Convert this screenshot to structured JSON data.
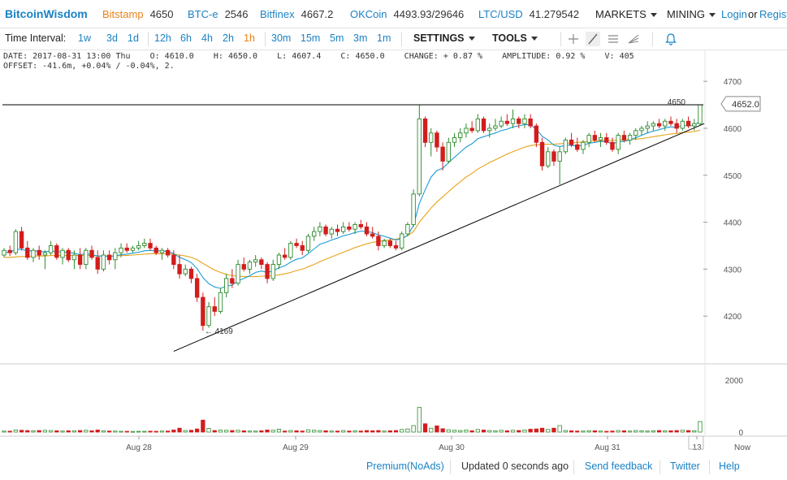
{
  "header": {
    "logo": "BitcoinWisdom",
    "tickers": [
      {
        "name": "Bitstamp",
        "price": "4650",
        "color": "#e8821a"
      },
      {
        "name": "BTC-e",
        "price": "2546",
        "color": "#1a82c5"
      },
      {
        "name": "Bitfinex",
        "price": "4667.2",
        "color": "#1a82c5"
      },
      {
        "name": "OKCoin",
        "price": "4493.93/29646",
        "color": "#1a82c5"
      },
      {
        "name": "LTC/USD",
        "price": "41.279542",
        "color": "#1a82c5"
      }
    ],
    "markets": "MARKETS",
    "mining": "MINING",
    "login": "Login",
    "or": "or",
    "register": "Regist"
  },
  "toolbar": {
    "label": "Time Interval:",
    "intervals": [
      "1w",
      "3d",
      "1d",
      "12h",
      "6h",
      "4h",
      "2h",
      "1h",
      "30m",
      "15m",
      "5m",
      "3m",
      "1m"
    ],
    "active_interval": "1h",
    "settings": "SETTINGS",
    "tools": "TOOLS",
    "tool_icons": [
      "crosshair-icon",
      "line-draw-icon",
      "fib-lines-icon",
      "fan-icon",
      "alarm-bell-icon"
    ]
  },
  "info": {
    "line1": "DATE: 2017-08-31 13:00 Thu    O: 4610.0    H: 4650.0    L: 4607.4    C: 4650.0    CHANGE: + 0.87 %    AMPLITUDE: 0.92 %    V: 405",
    "line2": "OFFSET: -41.6m, +0.04% / -0.04%, 2."
  },
  "chart_data": {
    "type": "candlestick",
    "colors": {
      "up": "#2e8b2e",
      "down": "#d31c1c",
      "ema_fast": "#1a9bd7",
      "ema_slow": "#e8a317",
      "line": "#000000"
    },
    "price_axis": {
      "ticks": [
        4200,
        4300,
        4400,
        4500,
        4600,
        4700
      ],
      "range": [
        4100,
        4740
      ]
    },
    "volume_axis": {
      "ticks": [
        0,
        2000
      ],
      "range": [
        0,
        2500
      ]
    },
    "time_labels": [
      "Aug 28",
      "Aug 29",
      "Aug 30",
      "Aug 31",
      "13",
      "Now"
    ],
    "current_price_tag": "4652.0",
    "high_label": "4650",
    "low_label": "← 4169",
    "horizontal_line": 4650,
    "candles": [
      [
        4330,
        4345,
        4325,
        4340,
        40
      ],
      [
        4340,
        4350,
        4328,
        4335,
        35
      ],
      [
        4335,
        4385,
        4330,
        4380,
        80
      ],
      [
        4380,
        4390,
        4340,
        4345,
        70
      ],
      [
        4345,
        4360,
        4320,
        4325,
        60
      ],
      [
        4325,
        4345,
        4315,
        4340,
        50
      ],
      [
        4340,
        4350,
        4320,
        4330,
        60
      ],
      [
        4330,
        4340,
        4300,
        4335,
        70
      ],
      [
        4335,
        4360,
        4330,
        4350,
        60
      ],
      [
        4350,
        4355,
        4320,
        4325,
        50
      ],
      [
        4325,
        4345,
        4310,
        4340,
        40
      ],
      [
        4340,
        4345,
        4315,
        4320,
        50
      ],
      [
        4320,
        4340,
        4300,
        4330,
        50
      ],
      [
        4330,
        4345,
        4300,
        4310,
        60
      ],
      [
        4310,
        4345,
        4300,
        4340,
        70
      ],
      [
        4340,
        4350,
        4320,
        4325,
        50
      ],
      [
        4325,
        4340,
        4290,
        4300,
        80
      ],
      [
        4300,
        4340,
        4295,
        4330,
        50
      ],
      [
        4330,
        4340,
        4310,
        4320,
        40
      ],
      [
        4320,
        4345,
        4300,
        4335,
        40
      ],
      [
        4335,
        4355,
        4325,
        4345,
        30
      ],
      [
        4345,
        4355,
        4335,
        4340,
        30
      ],
      [
        4340,
        4350,
        4335,
        4345,
        25
      ],
      [
        4345,
        4360,
        4340,
        4350,
        30
      ],
      [
        4350,
        4365,
        4345,
        4355,
        30
      ],
      [
        4355,
        4365,
        4340,
        4345,
        35
      ],
      [
        4345,
        4350,
        4330,
        4335,
        30
      ],
      [
        4335,
        4345,
        4320,
        4340,
        40
      ],
      [
        4340,
        4345,
        4325,
        4330,
        40
      ],
      [
        4330,
        4340,
        4300,
        4310,
        80
      ],
      [
        4310,
        4330,
        4280,
        4290,
        150
      ],
      [
        4290,
        4310,
        4285,
        4300,
        60
      ],
      [
        4300,
        4305,
        4270,
        4280,
        70
      ],
      [
        4280,
        4290,
        4230,
        4240,
        120
      ],
      [
        4240,
        4250,
        4169,
        4180,
        460
      ],
      [
        4180,
        4230,
        4175,
        4220,
        140
      ],
      [
        4220,
        4240,
        4200,
        4210,
        60
      ],
      [
        4210,
        4260,
        4205,
        4250,
        80
      ],
      [
        4250,
        4290,
        4240,
        4280,
        70
      ],
      [
        4280,
        4300,
        4260,
        4270,
        60
      ],
      [
        4270,
        4320,
        4265,
        4310,
        70
      ],
      [
        4310,
        4325,
        4295,
        4300,
        50
      ],
      [
        4300,
        4320,
        4290,
        4315,
        40
      ],
      [
        4315,
        4330,
        4305,
        4320,
        40
      ],
      [
        4320,
        4325,
        4300,
        4310,
        50
      ],
      [
        4310,
        4315,
        4270,
        4280,
        80
      ],
      [
        4280,
        4320,
        4275,
        4310,
        70
      ],
      [
        4310,
        4335,
        4300,
        4330,
        110
      ],
      [
        4330,
        4345,
        4320,
        4325,
        40
      ],
      [
        4325,
        4360,
        4320,
        4355,
        60
      ],
      [
        4355,
        4365,
        4345,
        4350,
        50
      ],
      [
        4350,
        4360,
        4330,
        4340,
        40
      ],
      [
        4340,
        4375,
        4335,
        4370,
        90
      ],
      [
        4370,
        4390,
        4360,
        4380,
        70
      ],
      [
        4380,
        4400,
        4370,
        4390,
        60
      ],
      [
        4390,
        4395,
        4370,
        4375,
        50
      ],
      [
        4375,
        4390,
        4365,
        4385,
        40
      ],
      [
        4385,
        4395,
        4370,
        4380,
        40
      ],
      [
        4380,
        4400,
        4375,
        4390,
        60
      ],
      [
        4390,
        4400,
        4380,
        4385,
        40
      ],
      [
        4385,
        4400,
        4375,
        4395,
        50
      ],
      [
        4395,
        4405,
        4385,
        4390,
        40
      ],
      [
        4390,
        4400,
        4370,
        4375,
        60
      ],
      [
        4375,
        4390,
        4365,
        4370,
        50
      ],
      [
        4370,
        4380,
        4340,
        4350,
        60
      ],
      [
        4350,
        4365,
        4345,
        4360,
        40
      ],
      [
        4360,
        4365,
        4345,
        4350,
        50
      ],
      [
        4350,
        4360,
        4340,
        4345,
        60
      ],
      [
        4345,
        4380,
        4340,
        4375,
        100
      ],
      [
        4375,
        4400,
        4370,
        4395,
        120
      ],
      [
        4395,
        4470,
        4390,
        4460,
        250
      ],
      [
        4460,
        4650,
        4455,
        4620,
        950
      ],
      [
        4620,
        4625,
        4560,
        4570,
        320
      ],
      [
        4570,
        4600,
        4540,
        4590,
        150
      ],
      [
        4590,
        4595,
        4550,
        4560,
        240
      ],
      [
        4560,
        4570,
        4510,
        4530,
        130
      ],
      [
        4530,
        4580,
        4525,
        4570,
        90
      ],
      [
        4570,
        4590,
        4560,
        4580,
        70
      ],
      [
        4580,
        4600,
        4570,
        4590,
        60
      ],
      [
        4590,
        4610,
        4580,
        4600,
        80
      ],
      [
        4600,
        4615,
        4590,
        4595,
        50
      ],
      [
        4595,
        4630,
        4590,
        4620,
        100
      ],
      [
        4620,
        4625,
        4590,
        4595,
        80
      ],
      [
        4595,
        4610,
        4580,
        4600,
        60
      ],
      [
        4600,
        4620,
        4595,
        4605,
        50
      ],
      [
        4605,
        4625,
        4600,
        4615,
        70
      ],
      [
        4615,
        4630,
        4605,
        4610,
        50
      ],
      [
        4610,
        4640,
        4600,
        4620,
        70
      ],
      [
        4620,
        4625,
        4600,
        4610,
        60
      ],
      [
        4610,
        4630,
        4600,
        4620,
        80
      ],
      [
        4620,
        4630,
        4600,
        4605,
        110
      ],
      [
        4605,
        4610,
        4560,
        4570,
        120
      ],
      [
        4570,
        4580,
        4510,
        4520,
        150
      ],
      [
        4520,
        4560,
        4515,
        4550,
        100
      ],
      [
        4550,
        4555,
        4520,
        4530,
        150
      ],
      [
        4530,
        4560,
        4480,
        4550,
        250
      ],
      [
        4550,
        4580,
        4545,
        4575,
        60
      ],
      [
        4575,
        4590,
        4560,
        4565,
        50
      ],
      [
        4565,
        4580,
        4550,
        4555,
        40
      ],
      [
        4555,
        4575,
        4545,
        4570,
        40
      ],
      [
        4570,
        4590,
        4560,
        4585,
        50
      ],
      [
        4585,
        4595,
        4570,
        4575,
        50
      ],
      [
        4575,
        4590,
        4560,
        4580,
        40
      ],
      [
        4580,
        4590,
        4565,
        4570,
        30
      ],
      [
        4570,
        4580,
        4550,
        4555,
        40
      ],
      [
        4555,
        4590,
        4545,
        4585,
        60
      ],
      [
        4585,
        4595,
        4570,
        4575,
        50
      ],
      [
        4575,
        4590,
        4565,
        4585,
        40
      ],
      [
        4585,
        4600,
        4575,
        4595,
        60
      ],
      [
        4595,
        4605,
        4585,
        4600,
        50
      ],
      [
        4600,
        4615,
        4590,
        4605,
        40
      ],
      [
        4605,
        4615,
        4595,
        4610,
        50
      ],
      [
        4610,
        4620,
        4600,
        4605,
        60
      ],
      [
        4605,
        4620,
        4595,
        4615,
        50
      ],
      [
        4615,
        4625,
        4605,
        4610,
        50
      ],
      [
        4610,
        4620,
        4590,
        4600,
        60
      ],
      [
        4600,
        4620,
        4595,
        4615,
        70
      ],
      [
        4615,
        4625,
        4600,
        4605,
        60
      ],
      [
        4605,
        4620,
        4595,
        4610,
        50
      ],
      [
        4610,
        4650,
        4607,
        4650,
        405
      ]
    ],
    "ema_fast": [
      4335,
      4336,
      4342,
      4342,
      4339,
      4339,
      4338,
      4337,
      4339,
      4337,
      4337,
      4335,
      4334,
      4331,
      4333,
      4331,
      4328,
      4328,
      4327,
      4328,
      4331,
      4332,
      4334,
      4336,
      4339,
      4340,
      4339,
      4339,
      4338,
      4333,
      4325,
      4320,
      4314,
      4301,
      4282,
      4269,
      4262,
      4259,
      4264,
      4266,
      4275,
      4280,
      4286,
      4293,
      4296,
      4293,
      4296,
      4303,
      4307,
      4315,
      4321,
      4324,
      4333,
      4343,
      4353,
      4357,
      4362,
      4366,
      4371,
      4374,
      4378,
      4381,
      4380,
      4378,
      4373,
      4370,
      4366,
      4362,
      4365,
      4372,
      4393,
      4440,
      4469,
      4496,
      4510,
      4515,
      4527,
      4538,
      4549,
      4560,
      4567,
      4578,
      4582,
      4586,
      4590,
      4595,
      4598,
      4603,
      4605,
      4608,
      4607,
      4598,
      4583,
      4575,
      4564,
      4561,
      4564,
      4564,
      4562,
      4564,
      4568,
      4570,
      4572,
      4571,
      4567,
      4571,
      4572,
      4575,
      4580,
      4585,
      4590,
      4594,
      4597,
      4601,
      4603,
      4602,
      4606,
      4605,
      4606,
      4616
    ],
    "ema_slow": [
      4325,
      4325,
      4326,
      4327,
      4327,
      4328,
      4328,
      4328,
      4329,
      4329,
      4329,
      4329,
      4329,
      4329,
      4329,
      4329,
      4328,
      4328,
      4328,
      4328,
      4329,
      4329,
      4330,
      4331,
      4332,
      4333,
      4333,
      4333,
      4333,
      4332,
      4330,
      4328,
      4325,
      4320,
      4312,
      4305,
      4298,
      4293,
      4289,
      4286,
      4285,
      4284,
      4284,
      4284,
      4285,
      4285,
      4286,
      4288,
      4290,
      4293,
      4297,
      4300,
      4305,
      4310,
      4316,
      4321,
      4326,
      4331,
      4336,
      4341,
      4346,
      4350,
      4354,
      4357,
      4359,
      4361,
      4362,
      4364,
      4367,
      4371,
      4380,
      4400,
      4415,
      4430,
      4443,
      4454,
      4465,
      4476,
      4486,
      4496,
      4504,
      4513,
      4520,
      4527,
      4533,
      4539,
      4545,
      4550,
      4555,
      4560,
      4563,
      4565,
      4565,
      4566,
      4566,
      4567,
      4568,
      4569,
      4570,
      4571,
      4572,
      4573,
      4574,
      4574,
      4574,
      4575,
      4575,
      4576,
      4577,
      4578,
      4580,
      4582,
      4584,
      4586,
      4588,
      4589,
      4591,
      4592,
      4593,
      4596
    ],
    "trendline": {
      "from_index": 29,
      "from_price": 4125,
      "to_index": 119,
      "to_price": 4610
    }
  },
  "footer": {
    "premium": "Premium(NoAds)",
    "updated": "Updated 0 seconds ago",
    "feedback": "Send feedback",
    "twitter": "Twitter",
    "help": "Help"
  }
}
